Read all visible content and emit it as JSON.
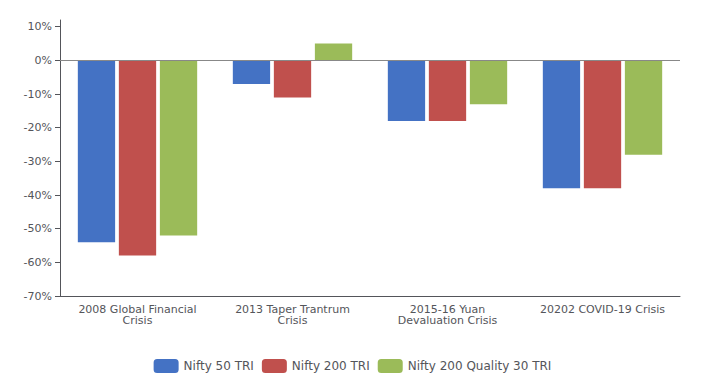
{
  "chart_data": {
    "type": "bar",
    "categories": [
      "2008 Global Financial\nCrisis",
      "2013 Taper Trantrum\nCrisis",
      "2015-16 Yuan\nDevaluation Crisis",
      "20202 COVID-19 Crisis"
    ],
    "series": [
      {
        "name": "Nifty 50 TRI",
        "color": "#4472C4",
        "values": [
          -0.54,
          -0.07,
          -0.18,
          -0.38
        ]
      },
      {
        "name": "Nifty 200 TRI",
        "color": "#C0504D",
        "values": [
          -0.58,
          -0.11,
          -0.18,
          -0.38
        ]
      },
      {
        "name": "Nifty 200 Quality 30 TRI",
        "color": "#9BBB59",
        "values": [
          -0.52,
          0.05,
          -0.13,
          -0.28
        ]
      }
    ],
    "ylim": [
      -0.7,
      0.12
    ],
    "yticks": [
      {
        "value": -0.7,
        "label": "-70%"
      },
      {
        "value": -0.6,
        "label": "-60%"
      },
      {
        "value": -0.5,
        "label": "-50%"
      },
      {
        "value": -0.4,
        "label": "-40%"
      },
      {
        "value": -0.3,
        "label": "-30%"
      },
      {
        "value": -0.2,
        "label": "-20%"
      },
      {
        "value": -0.1,
        "label": "-10%"
      },
      {
        "value": 0.0,
        "label": "0%"
      },
      {
        "value": 0.1,
        "label": "10%"
      }
    ],
    "grid": false,
    "legend": "bottom"
  }
}
